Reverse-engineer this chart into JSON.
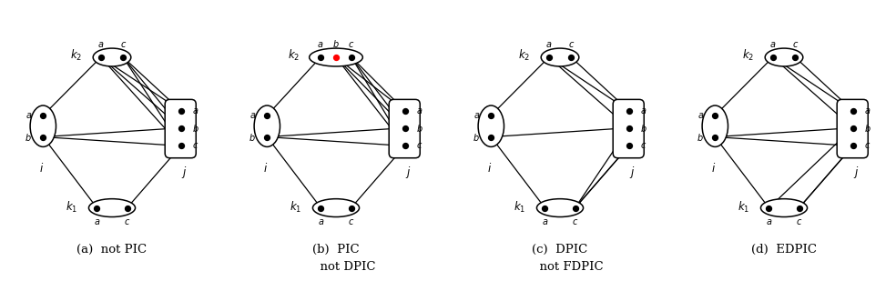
{
  "panels": [
    {
      "id": "a",
      "label_line1": "(a)  not PIC",
      "label_line2": "",
      "has_red_dot": false,
      "k2_three_dots": false,
      "edges": [
        [
          "k2_a",
          "i_a"
        ],
        [
          "k2_c",
          "j_a"
        ],
        [
          "i_b",
          "k1_a"
        ],
        [
          "j_c",
          "k1_c"
        ],
        [
          "i_b",
          "j_b"
        ],
        [
          "i_b",
          "j_c"
        ],
        [
          "k2_a",
          "j_a"
        ],
        [
          "k2_a",
          "j_b"
        ],
        [
          "k2_a",
          "j_c"
        ],
        [
          "k2_c",
          "j_b"
        ],
        [
          "k2_c",
          "j_c"
        ]
      ]
    },
    {
      "id": "b",
      "label_line1": "(b)  PIC",
      "label_line2": "      not DPIC",
      "has_red_dot": true,
      "k2_three_dots": true,
      "edges": [
        [
          "k2_a",
          "i_a"
        ],
        [
          "k2_c",
          "j_a"
        ],
        [
          "i_b",
          "k1_a"
        ],
        [
          "j_c",
          "k1_c"
        ],
        [
          "i_b",
          "j_b"
        ],
        [
          "i_b",
          "j_c"
        ],
        [
          "k2_b",
          "j_a"
        ],
        [
          "k2_b",
          "j_b"
        ],
        [
          "k2_b",
          "j_c"
        ],
        [
          "k2_c",
          "j_b"
        ],
        [
          "k2_c",
          "j_c"
        ]
      ]
    },
    {
      "id": "c",
      "label_line1": "(c)  DPIC",
      "label_line2": "      not FDPIC",
      "has_red_dot": false,
      "k2_three_dots": false,
      "edges": [
        [
          "k2_a",
          "i_a"
        ],
        [
          "k2_c",
          "j_a"
        ],
        [
          "i_b",
          "k1_a"
        ],
        [
          "j_c",
          "k1_c"
        ],
        [
          "i_b",
          "j_b"
        ],
        [
          "k2_a",
          "j_a"
        ],
        [
          "k2_a",
          "j_b"
        ],
        [
          "k1_c",
          "j_b"
        ],
        [
          "k1_c",
          "j_c"
        ]
      ]
    },
    {
      "id": "d",
      "label_line1": "(d)  EDPIC",
      "label_line2": "",
      "has_red_dot": false,
      "k2_three_dots": false,
      "edges": [
        [
          "k2_a",
          "i_a"
        ],
        [
          "k2_c",
          "j_a"
        ],
        [
          "i_b",
          "k1_a"
        ],
        [
          "j_c",
          "k1_c"
        ],
        [
          "i_b",
          "j_b"
        ],
        [
          "i_b",
          "j_c"
        ],
        [
          "k2_a",
          "j_a"
        ],
        [
          "k2_a",
          "j_b"
        ],
        [
          "k1_a",
          "j_b"
        ],
        [
          "k1_c",
          "j_c"
        ]
      ]
    }
  ]
}
